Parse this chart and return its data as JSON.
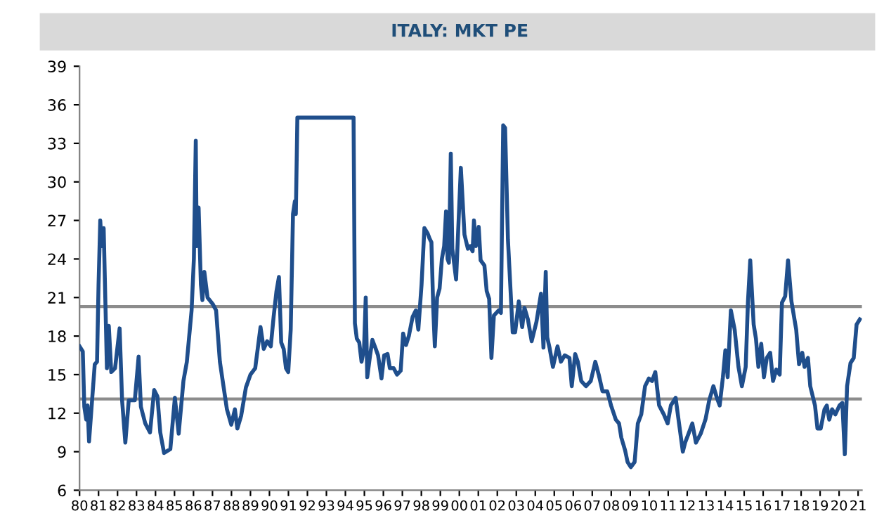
{
  "chart_data": {
    "type": "line",
    "title": "ITALY: MKT PE",
    "x": [
      1980.0,
      1980.17,
      1980.25,
      1980.35,
      1980.42,
      1980.5,
      1980.62,
      1980.8,
      1980.92,
      1981.0,
      1981.09,
      1981.17,
      1981.27,
      1981.37,
      1981.44,
      1981.54,
      1981.67,
      1981.87,
      1982.11,
      1982.24,
      1982.41,
      1982.59,
      1982.91,
      1983.11,
      1983.23,
      1983.46,
      1983.71,
      1983.93,
      1984.1,
      1984.25,
      1984.45,
      1984.78,
      1985.02,
      1985.22,
      1985.47,
      1985.65,
      1985.9,
      1986.02,
      1986.12,
      1986.17,
      1986.27,
      1986.39,
      1986.47,
      1986.57,
      1986.74,
      1987.01,
      1987.19,
      1987.39,
      1987.59,
      1987.76,
      1987.99,
      1988.18,
      1988.31,
      1988.51,
      1988.76,
      1989.0,
      1989.25,
      1989.53,
      1989.7,
      1989.88,
      1990.07,
      1990.22,
      1990.37,
      1990.5,
      1990.62,
      1990.75,
      1990.87,
      1990.99,
      1991.12,
      1991.24,
      1991.34,
      1991.39,
      1991.47,
      1994.43,
      1994.5,
      1994.6,
      1994.73,
      1994.85,
      1994.98,
      1995.07,
      1995.15,
      1995.3,
      1995.42,
      1995.6,
      1995.72,
      1995.9,
      1996.04,
      1996.22,
      1996.34,
      1996.54,
      1996.72,
      1996.91,
      1997.04,
      1997.19,
      1997.34,
      1997.54,
      1997.71,
      1997.84,
      1998.01,
      1998.16,
      1998.33,
      1998.43,
      1998.53,
      1998.63,
      1998.71,
      1998.83,
      1998.96,
      1999.08,
      1999.2,
      1999.3,
      1999.38,
      1999.45,
      1999.55,
      1999.63,
      1999.83,
      2000.08,
      2000.27,
      2000.45,
      2000.57,
      2000.7,
      2000.77,
      2000.87,
      2001.02,
      2001.12,
      2001.32,
      2001.44,
      2001.57,
      2001.69,
      2001.82,
      2002.07,
      2002.19,
      2002.31,
      2002.41,
      2002.56,
      2002.81,
      2002.94,
      2003.13,
      2003.31,
      2003.43,
      2003.61,
      2003.81,
      2004.06,
      2004.3,
      2004.43,
      2004.55,
      2004.63,
      2004.75,
      2004.93,
      2005.17,
      2005.35,
      2005.55,
      2005.8,
      2005.92,
      2006.1,
      2006.24,
      2006.42,
      2006.67,
      2006.92,
      2007.16,
      2007.34,
      2007.54,
      2007.79,
      2007.99,
      2008.24,
      2008.41,
      2008.53,
      2008.73,
      2008.86,
      2009.03,
      2009.23,
      2009.4,
      2009.58,
      2009.78,
      2009.98,
      2010.15,
      2010.32,
      2010.52,
      2010.77,
      2010.97,
      2011.14,
      2011.39,
      2011.57,
      2011.77,
      2011.89,
      2012.07,
      2012.27,
      2012.46,
      2012.71,
      2012.96,
      2013.16,
      2013.38,
      2013.56,
      2013.71,
      2013.88,
      2014.01,
      2014.13,
      2014.3,
      2014.5,
      2014.7,
      2014.88,
      2015.08,
      2015.2,
      2015.32,
      2015.5,
      2015.62,
      2015.75,
      2015.9,
      2016.04,
      2016.19,
      2016.37,
      2016.52,
      2016.69,
      2016.87,
      2016.99,
      2017.16,
      2017.31,
      2017.49,
      2017.74,
      2017.89,
      2018.06,
      2018.18,
      2018.36,
      2018.48,
      2018.73,
      2018.86,
      2019.03,
      2019.23,
      2019.35,
      2019.48,
      2019.63,
      2019.8,
      2020.02,
      2020.17,
      2020.3,
      2020.42,
      2020.6,
      2020.77,
      2020.92,
      2021.09
    ],
    "series": [
      {
        "color": "#1f4e8c",
        "values": [
          17.2,
          16.8,
          12.5,
          11.5,
          12.6,
          9.8,
          12.2,
          15.8,
          16.0,
          22.0,
          27.0,
          25.0,
          26.4,
          20.0,
          15.5,
          18.8,
          15.2,
          15.5,
          18.6,
          13.0,
          9.7,
          13.0,
          13.0,
          16.4,
          12.5,
          11.2,
          10.5,
          13.8,
          13.3,
          10.5,
          8.9,
          9.2,
          13.2,
          10.4,
          14.5,
          16.0,
          20.0,
          24.0,
          33.2,
          25.0,
          28.0,
          22.0,
          20.8,
          23.0,
          21.0,
          20.5,
          20.0,
          16.0,
          14.0,
          12.3,
          11.1,
          12.3,
          10.8,
          11.8,
          14.0,
          15.0,
          15.5,
          18.7,
          17.0,
          17.6,
          17.2,
          19.5,
          21.5,
          22.6,
          17.5,
          17.0,
          15.5,
          15.2,
          18.5,
          27.5,
          28.5,
          27.5,
          35.0,
          35.0,
          19.0,
          17.8,
          17.5,
          16.0,
          17.0,
          21.0,
          14.8,
          16.5,
          17.7,
          17.0,
          16.5,
          14.7,
          16.5,
          16.6,
          15.5,
          15.5,
          15.0,
          15.3,
          18.2,
          17.3,
          18.0,
          19.5,
          20.0,
          18.5,
          22.0,
          26.4,
          26.0,
          25.6,
          25.3,
          20.0,
          17.2,
          21.0,
          21.7,
          24.0,
          25.0,
          27.7,
          24.0,
          23.7,
          32.2,
          24.8,
          22.4,
          31.1,
          25.9,
          24.8,
          25.0,
          24.6,
          27.0,
          25.0,
          26.5,
          23.9,
          23.5,
          21.5,
          20.9,
          16.3,
          19.6,
          20.0,
          19.8,
          34.4,
          34.2,
          25.5,
          18.3,
          18.3,
          20.7,
          18.7,
          20.2,
          19.3,
          17.6,
          19.1,
          21.3,
          17.1,
          23.0,
          17.9,
          17.1,
          15.6,
          17.2,
          16.0,
          16.5,
          16.3,
          14.1,
          16.6,
          16.0,
          14.5,
          14.1,
          14.5,
          16.0,
          15.0,
          13.7,
          13.7,
          12.6,
          11.5,
          11.2,
          10.1,
          9.1,
          8.2,
          7.8,
          8.2,
          11.2,
          11.9,
          14.1,
          14.7,
          14.5,
          15.2,
          12.6,
          11.9,
          11.2,
          12.6,
          13.2,
          11.2,
          9.0,
          9.7,
          10.4,
          11.2,
          9.7,
          10.4,
          11.5,
          13.0,
          14.1,
          13.2,
          12.6,
          14.8,
          16.9,
          14.8,
          20.0,
          18.5,
          15.6,
          14.1,
          15.6,
          20.7,
          23.9,
          18.9,
          17.8,
          15.6,
          17.4,
          14.8,
          16.3,
          16.7,
          14.5,
          15.4,
          15.0,
          20.6,
          21.1,
          23.9,
          20.7,
          18.5,
          15.8,
          16.7,
          15.6,
          16.3,
          14.1,
          12.6,
          10.8,
          10.8,
          12.3,
          12.6,
          11.5,
          12.3,
          11.9,
          12.6,
          12.8,
          8.8,
          14.1,
          15.9,
          16.3,
          18.9,
          19.3
        ]
      }
    ],
    "xlim": [
      1980,
      2021.2
    ],
    "xticks": [
      {
        "value": 1980,
        "label": "80"
      },
      {
        "value": 1981,
        "label": "81"
      },
      {
        "value": 1982,
        "label": "82"
      },
      {
        "value": 1983,
        "label": "83"
      },
      {
        "value": 1984,
        "label": "84"
      },
      {
        "value": 1985,
        "label": "85"
      },
      {
        "value": 1986,
        "label": "86"
      },
      {
        "value": 1987,
        "label": "87"
      },
      {
        "value": 1988,
        "label": "88"
      },
      {
        "value": 1989,
        "label": "89"
      },
      {
        "value": 1990,
        "label": "90"
      },
      {
        "value": 1991,
        "label": "91"
      },
      {
        "value": 1992,
        "label": "92"
      },
      {
        "value": 1993,
        "label": "93"
      },
      {
        "value": 1994,
        "label": "94"
      },
      {
        "value": 1995,
        "label": "95"
      },
      {
        "value": 1996,
        "label": "96"
      },
      {
        "value": 1997,
        "label": "97"
      },
      {
        "value": 1998,
        "label": "98"
      },
      {
        "value": 1999,
        "label": "99"
      },
      {
        "value": 2000,
        "label": "00"
      },
      {
        "value": 2001,
        "label": "01"
      },
      {
        "value": 2002,
        "label": "02"
      },
      {
        "value": 2003,
        "label": "03"
      },
      {
        "value": 2004,
        "label": "04"
      },
      {
        "value": 2005,
        "label": "05"
      },
      {
        "value": 2006,
        "label": "06"
      },
      {
        "value": 2007,
        "label": "07"
      },
      {
        "value": 2008,
        "label": "08"
      },
      {
        "value": 2009,
        "label": "09"
      },
      {
        "value": 2010,
        "label": "10"
      },
      {
        "value": 2011,
        "label": "11"
      },
      {
        "value": 2012,
        "label": "12"
      },
      {
        "value": 2013,
        "label": "13"
      },
      {
        "value": 2014,
        "label": "14"
      },
      {
        "value": 2015,
        "label": "15"
      },
      {
        "value": 2016,
        "label": "16"
      },
      {
        "value": 2017,
        "label": "17"
      },
      {
        "value": 2018,
        "label": "18"
      },
      {
        "value": 2019,
        "label": "19"
      },
      {
        "value": 2020,
        "label": "20"
      },
      {
        "value": 2021,
        "label": "21"
      }
    ],
    "ylim": [
      6,
      39
    ],
    "yticks": [
      6,
      9,
      12,
      15,
      18,
      21,
      24,
      27,
      30,
      33,
      36,
      39
    ],
    "ref_lines": [
      {
        "axis": "y",
        "value": 20.3,
        "color": "#8c8c8c"
      },
      {
        "axis": "y",
        "value": 13.1,
        "color": "#8c8c8c"
      }
    ],
    "grid": false,
    "legend": false
  }
}
